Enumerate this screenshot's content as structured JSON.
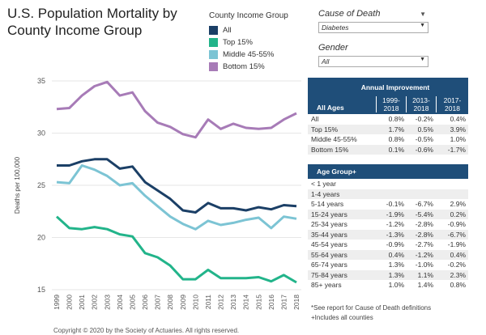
{
  "title": "U.S. Population Mortality by County Income Group",
  "legend": {
    "title": "County Income Group",
    "items": [
      {
        "label": "All",
        "color": "#1b3f66"
      },
      {
        "label": "Top 15%",
        "color": "#22b48a"
      },
      {
        "label": "Middle 45-55%",
        "color": "#7cc4d4"
      },
      {
        "label": "Bottom 15%",
        "color": "#a77bb7"
      }
    ]
  },
  "filters": {
    "cause_label": "Cause of Death",
    "cause_value": "Diabetes",
    "gender_label": "Gender",
    "gender_value": "All"
  },
  "chart_data": {
    "type": "line",
    "ylabel": "Deaths per 100,000",
    "xlabel": "",
    "ylim": [
      15,
      35
    ],
    "yticks": [
      15,
      20,
      25,
      30,
      35
    ],
    "x": [
      "1999",
      "2000",
      "2001",
      "2002",
      "2003",
      "2004",
      "2005",
      "2006",
      "2007",
      "2008",
      "2009",
      "2010",
      "2011",
      "2012",
      "2013",
      "2014",
      "2015",
      "2016",
      "2017",
      "2018"
    ],
    "series": [
      {
        "name": "All",
        "color": "#1b3f66",
        "values": [
          26.9,
          26.9,
          27.3,
          27.5,
          27.5,
          26.6,
          26.8,
          25.3,
          24.5,
          23.7,
          22.6,
          22.4,
          23.3,
          22.8,
          22.8,
          22.6,
          22.9,
          22.7,
          23.1,
          23.0
        ]
      },
      {
        "name": "Top 15%",
        "color": "#22b48a",
        "values": [
          22.0,
          20.9,
          20.8,
          21.0,
          20.8,
          20.3,
          20.1,
          18.5,
          18.1,
          17.3,
          16.0,
          16.0,
          16.9,
          16.1,
          16.1,
          16.1,
          16.2,
          15.8,
          16.4,
          15.7
        ]
      },
      {
        "name": "Middle 45-55%",
        "color": "#7cc4d4",
        "values": [
          25.3,
          25.2,
          26.9,
          26.5,
          25.9,
          25.0,
          25.2,
          24.0,
          23.0,
          22.0,
          21.3,
          20.8,
          21.6,
          21.2,
          21.4,
          21.7,
          21.9,
          20.9,
          22.0,
          21.8
        ]
      },
      {
        "name": "Bottom 15%",
        "color": "#a77bb7",
        "values": [
          32.3,
          32.4,
          33.6,
          34.5,
          34.9,
          33.6,
          33.9,
          32.1,
          31.0,
          30.6,
          29.9,
          29.6,
          31.3,
          30.4,
          30.9,
          30.5,
          30.4,
          30.5,
          31.3,
          31.9
        ]
      }
    ]
  },
  "improvement_table": {
    "title": "Annual Improvement",
    "group_header": "All Ages",
    "columns": [
      "1999-2018",
      "2013-2018",
      "2017-2018"
    ],
    "rows": [
      {
        "label": "All",
        "v1": "0.8%",
        "v2": "-0.2%",
        "v3": "0.4%"
      },
      {
        "label": "Top 15%",
        "v1": "1.7%",
        "v2": "0.5%",
        "v3": "3.9%"
      },
      {
        "label": "Middle 45-55%",
        "v1": "0.8%",
        "v2": "-0.5%",
        "v3": "1.0%"
      },
      {
        "label": "Bottom 15%",
        "v1": "0.1%",
        "v2": "-0.6%",
        "v3": "-1.7%"
      }
    ]
  },
  "age_table": {
    "title": "Age Group+",
    "rows": [
      {
        "label": "< 1 year",
        "v1": "",
        "v2": "",
        "v3": ""
      },
      {
        "label": "1-4 years",
        "v1": "",
        "v2": "",
        "v3": ""
      },
      {
        "label": "5-14 years",
        "v1": "-0.1%",
        "v2": "-6.7%",
        "v3": "2.9%"
      },
      {
        "label": "15-24 years",
        "v1": "-1.9%",
        "v2": "-5.4%",
        "v3": "0.2%"
      },
      {
        "label": "25-34 years",
        "v1": "-1.2%",
        "v2": "-2.8%",
        "v3": "-0.9%"
      },
      {
        "label": "35-44 years",
        "v1": "-1.3%",
        "v2": "-2.8%",
        "v3": "-6.7%"
      },
      {
        "label": "45-54 years",
        "v1": "-0.9%",
        "v2": "-2.7%",
        "v3": "-1.9%"
      },
      {
        "label": "55-64 years",
        "v1": "0.4%",
        "v2": "-1.2%",
        "v3": "0.4%"
      },
      {
        "label": "65-74 years",
        "v1": "1.3%",
        "v2": "-1.0%",
        "v3": "-0.2%"
      },
      {
        "label": "75-84 years",
        "v1": "1.3%",
        "v2": "1.1%",
        "v3": "2.3%"
      },
      {
        "label": "85+ years",
        "v1": "1.0%",
        "v2": "1.4%",
        "v3": "0.8%"
      }
    ]
  },
  "footnotes": [
    "*See report for Cause of Death definitions",
    "+Includes all counties"
  ],
  "copyright": "Copyright © 2020 by the Society of Actuaries. All rights reserved."
}
